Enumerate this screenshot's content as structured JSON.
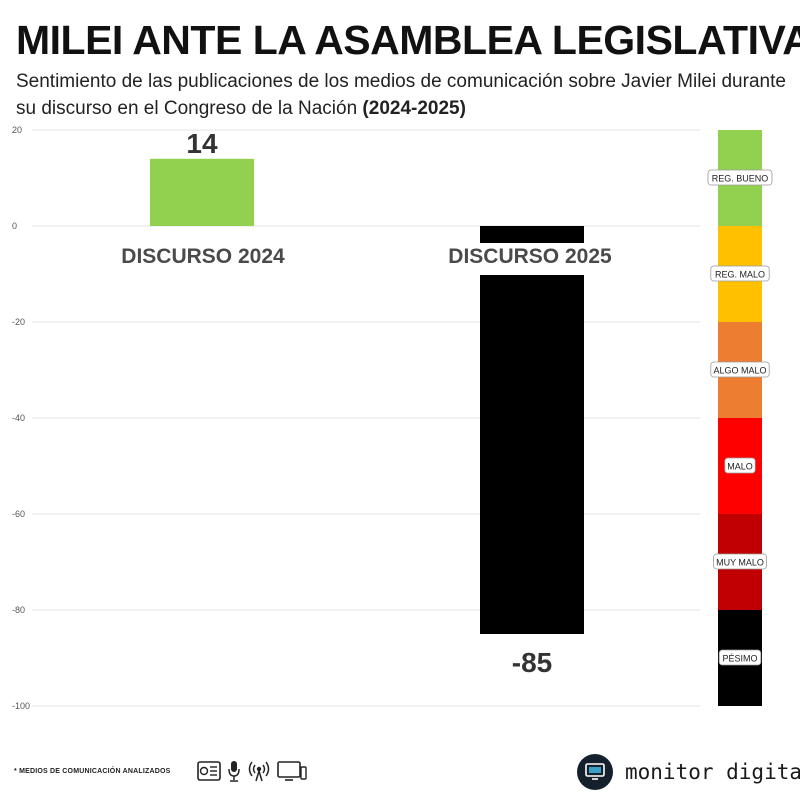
{
  "header": {
    "title": "MILEI ANTE LA ASAMBLEA LEGISLATIVA",
    "subtitle_text": "Sentimiento de las publicaciones de los medios de comunicación sobre Javier Milei durante su discurso en el Congreso de la Nación",
    "subtitle_years": "(2024-2025)"
  },
  "chart_data": {
    "type": "bar",
    "categories": [
      "DISCURSO 2024",
      "DISCURSO 2025"
    ],
    "values": [
      14,
      -85
    ],
    "value_labels": [
      "14",
      "-85"
    ],
    "bar_colors": [
      "#92d050",
      "#000000"
    ],
    "ylim": [
      -100,
      20
    ],
    "yticks": [
      20,
      0,
      -20,
      -40,
      -60,
      -80,
      -100
    ],
    "ytick_labels": [
      "20",
      "0",
      "-20",
      "-40",
      "-60",
      "-80",
      "-100"
    ],
    "grid": true,
    "xlabel": "",
    "ylabel": "",
    "scale": [
      {
        "label": "REG. BUENO",
        "from": 20,
        "to": 0,
        "color": "#92d050"
      },
      {
        "label": "REG. MALO",
        "from": 0,
        "to": -20,
        "color": "#ffc000"
      },
      {
        "label": "ALGO MALO",
        "from": -20,
        "to": -40,
        "color": "#ed7d31"
      },
      {
        "label": "MALO",
        "from": -40,
        "to": -60,
        "color": "#ff0000"
      },
      {
        "label": "MUY MALO",
        "from": -60,
        "to": -80,
        "color": "#c00000"
      },
      {
        "label": "PÉSIMO",
        "from": -80,
        "to": -100,
        "color": "#000000"
      }
    ]
  },
  "footer": {
    "note": "* MEDIOS DE COMUNICACIÓN ANALIZADOS",
    "media_icons": [
      "newspaper-icon",
      "microphone-icon",
      "radio-broadcast-icon",
      "tv-icon"
    ],
    "brand": "monitor digital",
    "brand_icon": "monitor-icon"
  }
}
